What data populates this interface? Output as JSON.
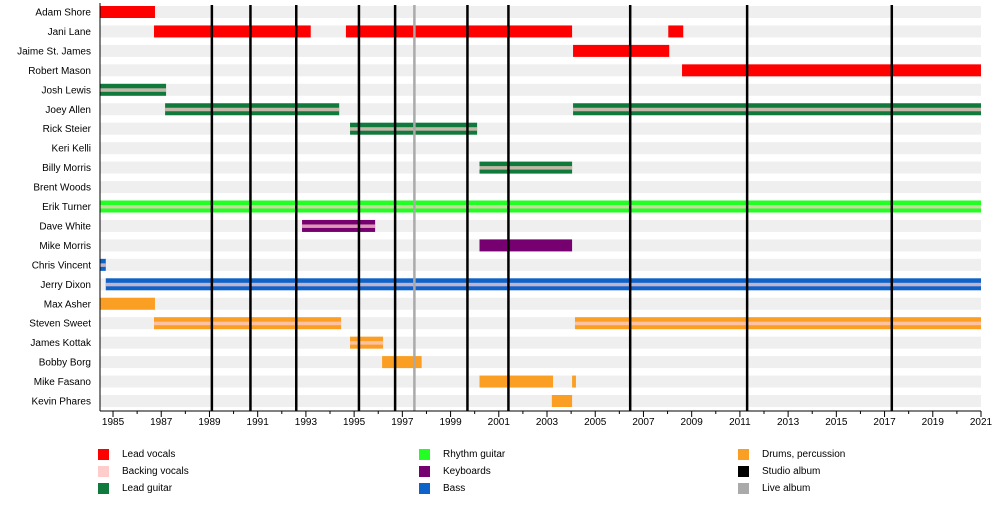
{
  "chart_data": {
    "type": "timeline",
    "xlim": [
      1984.46,
      2021
    ],
    "tick_labels": [
      1985,
      1987,
      1989,
      1991,
      1993,
      1995,
      1997,
      1999,
      2001,
      2003,
      2005,
      2007,
      2009,
      2011,
      2013,
      2015,
      2017,
      2019,
      2021
    ],
    "colors": {
      "lead_vocals": "#ff0000",
      "backing_vocals": "#ffcccc",
      "lead_guitar": "#107a3c",
      "rhythm_guitar": "#22ff22",
      "keyboards": "#76006f",
      "bass": "#0d63c8",
      "drums": "#fb9f24",
      "studio_album": "#000000",
      "live_album": "#aaaaaa"
    },
    "members": [
      {
        "name": "Adam Shore",
        "periods": [
          {
            "start": 1984.46,
            "end": 1986.74,
            "role": "lead_vocals",
            "backing": false
          }
        ]
      },
      {
        "name": "Jani Lane",
        "periods": [
          {
            "start": 1986.7,
            "end": 1993.2,
            "role": "lead_vocals",
            "backing": false
          },
          {
            "start": 1994.66,
            "end": 2004.04,
            "role": "lead_vocals",
            "backing": false
          },
          {
            "start": 2008.03,
            "end": 2008.65,
            "role": "lead_vocals",
            "backing": false
          }
        ]
      },
      {
        "name": "Jaime St. James",
        "periods": [
          {
            "start": 2004.08,
            "end": 2008.07,
            "role": "lead_vocals",
            "backing": false
          }
        ]
      },
      {
        "name": "Robert Mason",
        "periods": [
          {
            "start": 2008.6,
            "end": 2021,
            "role": "lead_vocals",
            "backing": false
          }
        ]
      },
      {
        "name": "Josh Lewis",
        "periods": [
          {
            "start": 1984.46,
            "end": 1987.2,
            "role": "lead_guitar",
            "backing": true
          }
        ]
      },
      {
        "name": "Joey Allen",
        "periods": [
          {
            "start": 1987.16,
            "end": 1994.38,
            "role": "lead_guitar",
            "backing": true
          },
          {
            "start": 2004.08,
            "end": 2021,
            "role": "lead_guitar",
            "backing": true
          }
        ]
      },
      {
        "name": "Rick Steier",
        "periods": [
          {
            "start": 1994.83,
            "end": 2000.1,
            "role": "lead_guitar",
            "backing": true
          }
        ]
      },
      {
        "name": "Keri Kelli",
        "periods": []
      },
      {
        "name": "Billy Morris",
        "periods": [
          {
            "start": 2000.2,
            "end": 2004.04,
            "role": "lead_guitar",
            "backing": true
          }
        ]
      },
      {
        "name": "Brent Woods",
        "periods": []
      },
      {
        "name": "Erik Turner",
        "periods": [
          {
            "start": 1984.46,
            "end": 2021,
            "role": "rhythm_guitar",
            "backing": true
          }
        ]
      },
      {
        "name": "Dave White",
        "periods": [
          {
            "start": 1992.84,
            "end": 1995.87,
            "role": "keyboards",
            "backing": true
          }
        ]
      },
      {
        "name": "Mike Morris",
        "periods": [
          {
            "start": 2000.2,
            "end": 2004.04,
            "role": "keyboards",
            "backing": false
          }
        ]
      },
      {
        "name": "Chris Vincent",
        "periods": [
          {
            "start": 1984.46,
            "end": 1984.7,
            "role": "bass",
            "backing": true
          }
        ]
      },
      {
        "name": "Jerry Dixon",
        "periods": [
          {
            "start": 1984.7,
            "end": 2021,
            "role": "bass",
            "backing": true
          }
        ]
      },
      {
        "name": "Max Asher",
        "periods": [
          {
            "start": 1984.46,
            "end": 1986.74,
            "role": "drums",
            "backing": false
          }
        ]
      },
      {
        "name": "Steven Sweet",
        "periods": [
          {
            "start": 1986.7,
            "end": 1994.46,
            "role": "drums",
            "backing": true
          },
          {
            "start": 2004.16,
            "end": 2021,
            "role": "drums",
            "backing": true
          }
        ]
      },
      {
        "name": "James Kottak",
        "periods": [
          {
            "start": 1994.83,
            "end": 1996.2,
            "role": "drums",
            "backing": true
          }
        ]
      },
      {
        "name": "Bobby Borg",
        "periods": [
          {
            "start": 1996.16,
            "end": 1997.8,
            "role": "drums",
            "backing": false
          }
        ]
      },
      {
        "name": "Mike Fasano",
        "periods": [
          {
            "start": 2000.2,
            "end": 2003.25,
            "role": "drums",
            "backing": false
          },
          {
            "start": 2004.04,
            "end": 2004.2,
            "role": "drums",
            "backing": false
          }
        ]
      },
      {
        "name": "Kevin Phares",
        "periods": [
          {
            "start": 2003.2,
            "end": 2004.04,
            "role": "drums",
            "backing": false
          }
        ]
      }
    ],
    "studio_albums": [
      1989.1,
      1990.7,
      1992.6,
      1995.2,
      1996.7,
      1999.7,
      2001.4,
      2006.45,
      2011.3,
      2017.3
    ],
    "live_albums": [
      1997.5
    ],
    "legend": [
      {
        "key": "lead_vocals",
        "label": "Lead vocals"
      },
      {
        "key": "backing_vocals",
        "label": "Backing vocals"
      },
      {
        "key": "lead_guitar",
        "label": "Lead guitar"
      },
      {
        "key": "rhythm_guitar",
        "label": "Rhythm guitar"
      },
      {
        "key": "keyboards",
        "label": "Keyboards"
      },
      {
        "key": "bass",
        "label": "Bass"
      },
      {
        "key": "drums",
        "label": "Drums, percussion"
      },
      {
        "key": "studio_album",
        "label": "Studio album"
      },
      {
        "key": "live_album",
        "label": "Live album"
      }
    ]
  }
}
